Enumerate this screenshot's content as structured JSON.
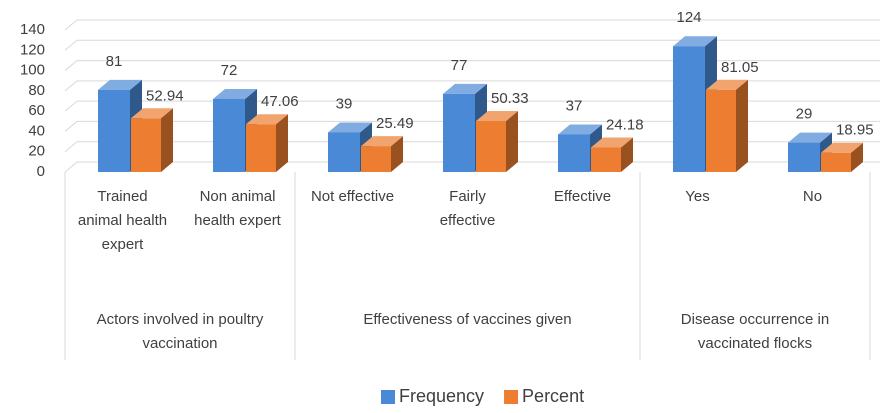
{
  "chart_data": {
    "type": "bar3d",
    "groups": [
      {
        "name": "Actors involved in poultry vaccination",
        "categories": [
          "Trained animal health expert",
          "Non animal health expert"
        ]
      },
      {
        "name": "Effectiveness of vaccines given",
        "categories": [
          "Not effective",
          "Fairly effective",
          "Effective"
        ]
      },
      {
        "name": "Disease occurrence in vaccinated flocks",
        "categories": [
          "Yes",
          "No"
        ]
      }
    ],
    "series": [
      {
        "name": "Frequency",
        "color": "#4a89d6",
        "values": [
          81,
          72,
          39,
          77,
          37,
          124,
          29
        ]
      },
      {
        "name": "Percent",
        "color": "#ed7d31",
        "values": [
          52.94,
          47.06,
          25.49,
          50.33,
          24.18,
          81.05,
          18.95
        ]
      }
    ],
    "ylim": [
      0,
      140
    ],
    "yticks": [
      0,
      20,
      40,
      60,
      80,
      100,
      120,
      140
    ],
    "grid": true,
    "legend": "bottom"
  }
}
